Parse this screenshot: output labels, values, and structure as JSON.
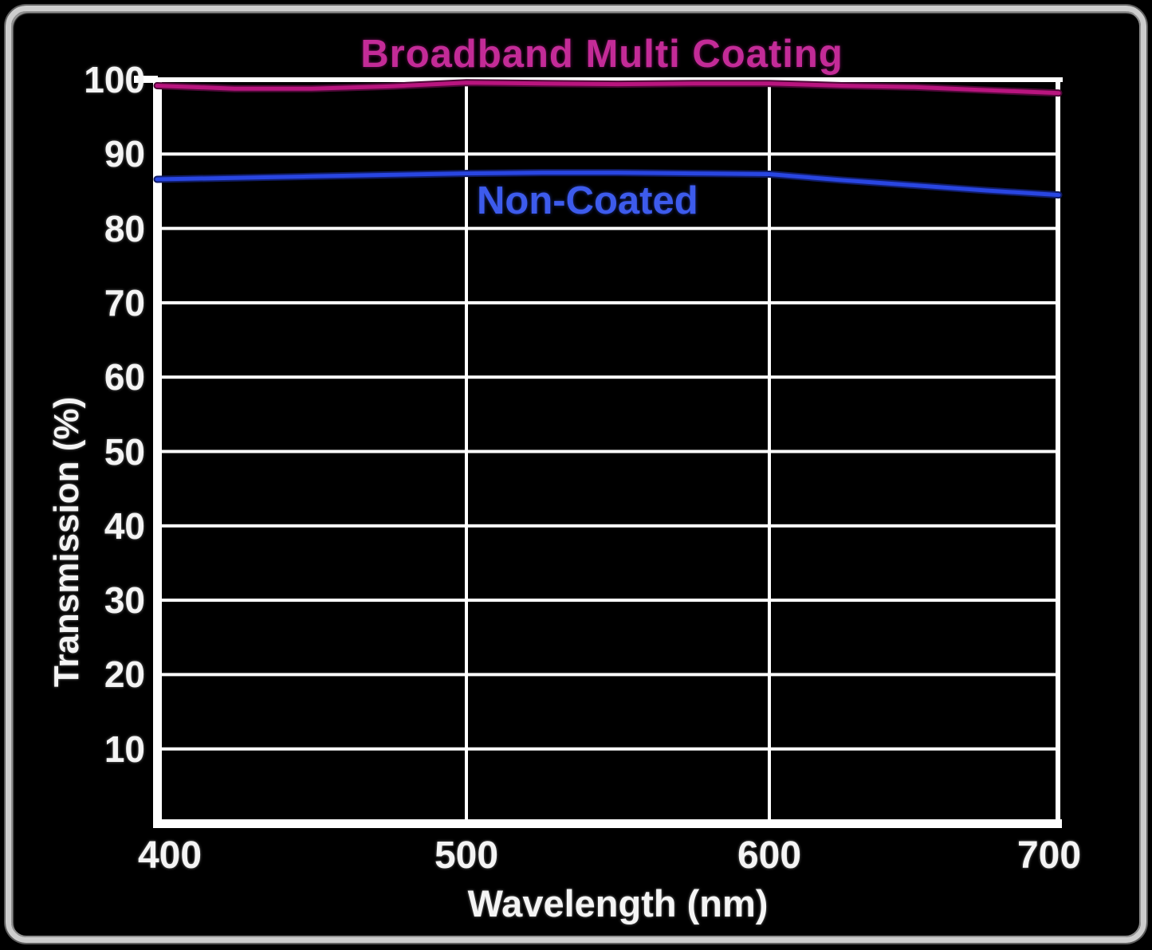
{
  "panel": {
    "background": "#000000",
    "frame_color": "#cdcdcd"
  },
  "chart_data": {
    "type": "line",
    "title": "Broadband Multi Coating",
    "xlabel": "Wavelength (nm)",
    "ylabel": "Transmission (%)",
    "xlim": [
      400,
      700
    ],
    "ylim": [
      0,
      100
    ],
    "x_ticks": [
      "400",
      "500",
      "600",
      "700"
    ],
    "y_ticks": [
      "10",
      "20",
      "30",
      "40",
      "50",
      "60",
      "70",
      "80",
      "90",
      "100"
    ],
    "grid": "on",
    "grid_color": "#ffffff",
    "axis_color": "#ffffff",
    "legend_position": "labels-on-chart",
    "inline_label": "Non-Coated",
    "x": [
      400,
      425,
      450,
      475,
      500,
      525,
      550,
      575,
      600,
      625,
      650,
      675,
      700
    ],
    "series": [
      {
        "name": "Broadband Multi Coating",
        "color": "#b9157f",
        "glow_color": "#4f0838",
        "label_color": "#c32b97",
        "values": [
          99.2,
          98.8,
          98.8,
          99.1,
          99.6,
          99.5,
          99.4,
          99.5,
          99.5,
          99.2,
          99.0,
          98.6,
          98.2
        ]
      },
      {
        "name": "Non-Coated",
        "color": "#2946e2",
        "glow_color": "#101c66",
        "label_color": "#3d5bec",
        "values": [
          86.6,
          86.8,
          87.0,
          87.2,
          87.4,
          87.5,
          87.5,
          87.4,
          87.3,
          86.5,
          85.8,
          85.1,
          84.5
        ]
      }
    ]
  }
}
